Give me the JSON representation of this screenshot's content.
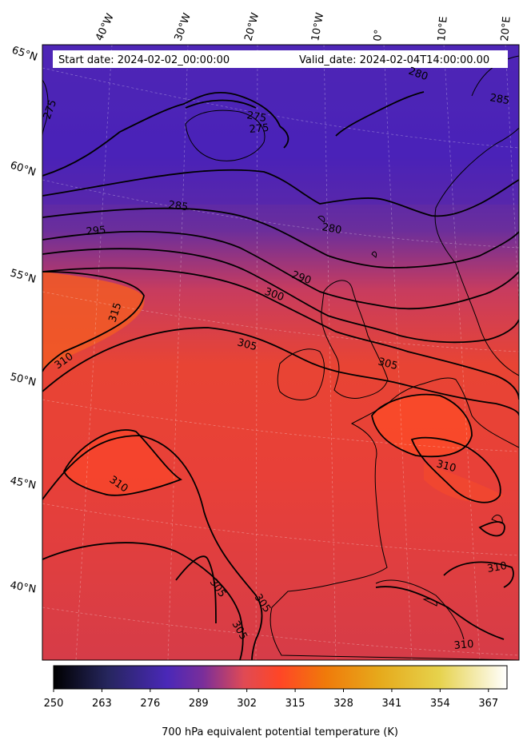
{
  "header": {
    "start_date": "Start date: 2024-02-02_00:00:00",
    "valid_date": "Valid_date: 2024-02-04T14:00:00.00"
  },
  "longitude_labels": [
    "40°W",
    "30°W",
    "20°W",
    "10°W",
    "0°",
    "10°E",
    "20°E"
  ],
  "latitude_labels": [
    "65°N",
    "60°N",
    "55°N",
    "50°N",
    "45°N",
    "40°N"
  ],
  "contour_labels": [
    "275",
    "275",
    "280",
    "285",
    "295",
    "290",
    "300",
    "315",
    "310",
    "305",
    "305",
    "310",
    "310",
    "305",
    "305",
    "305",
    "310",
    "310",
    "280",
    "285",
    "275"
  ],
  "colorbar": {
    "ticks": [
      "250",
      "263",
      "276",
      "289",
      "302",
      "315",
      "328",
      "341",
      "354",
      "367"
    ],
    "label": "700 hPa equivalent potential temperature (K)",
    "range": [
      250,
      372
    ],
    "colormap": "CMRmap"
  },
  "colors": {
    "cold": "#4a22b8",
    "warm": "#f04a30",
    "contour": "#000000"
  }
}
